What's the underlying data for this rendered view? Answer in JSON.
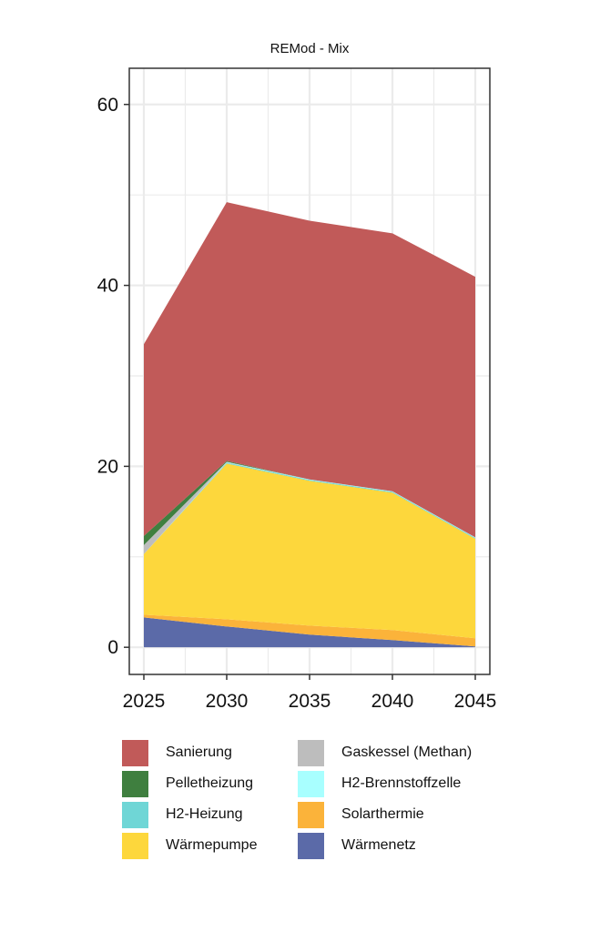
{
  "chart_data": {
    "type": "area",
    "stacked": true,
    "title": "REMod - Mix",
    "xlabel": "",
    "ylabel": "",
    "x": [
      2025,
      2030,
      2035,
      2040,
      2045
    ],
    "xlim": [
      2025,
      2045
    ],
    "ylim": [
      -3,
      64
    ],
    "xticks": [
      "2025",
      "2030",
      "2035",
      "2040",
      "2045"
    ],
    "yticks": [
      "0",
      "20",
      "40",
      "60"
    ],
    "grid": true,
    "legend_position": "bottom",
    "series": [
      {
        "name": "Wärmenetz",
        "color": "#5b6aa8",
        "values": [
          3.3,
          2.3,
          1.4,
          0.8,
          0.1
        ]
      },
      {
        "name": "Solarthermie",
        "color": "#fbb33a",
        "values": [
          0.3,
          0.8,
          1.0,
          1.1,
          0.9
        ]
      },
      {
        "name": "Wärmepumpe",
        "color": "#fdd73c",
        "values": [
          6.7,
          17.2,
          16.0,
          15.2,
          11.0
        ]
      },
      {
        "name": "H2-Heizung",
        "color": "#6fd6d6",
        "values": [
          0.0,
          0.1,
          0.1,
          0.1,
          0.1
        ]
      },
      {
        "name": "H2-Brennstoffzelle",
        "color": "#a8ffff",
        "values": [
          0.0,
          0.05,
          0.05,
          0.05,
          0.05
        ]
      },
      {
        "name": "Gaskessel (Methan)",
        "color": "#bdbdbd",
        "values": [
          1.0,
          0.05,
          0.0,
          0.0,
          0.0
        ]
      },
      {
        "name": "Pelletheizung",
        "color": "#3f7f3f",
        "values": [
          1.0,
          0.1,
          0.0,
          0.0,
          0.0
        ]
      },
      {
        "name": "Sanierung",
        "color": "#c15a59",
        "values": [
          21.2,
          28.6,
          28.6,
          28.5,
          28.8
        ]
      }
    ],
    "legend_order": [
      "Sanierung",
      "Pelletheizung",
      "H2-Heizung",
      "Wärmepumpe",
      "Gaskessel (Methan)",
      "H2-Brennstoffzelle",
      "Solarthermie",
      "Wärmenetz"
    ]
  }
}
